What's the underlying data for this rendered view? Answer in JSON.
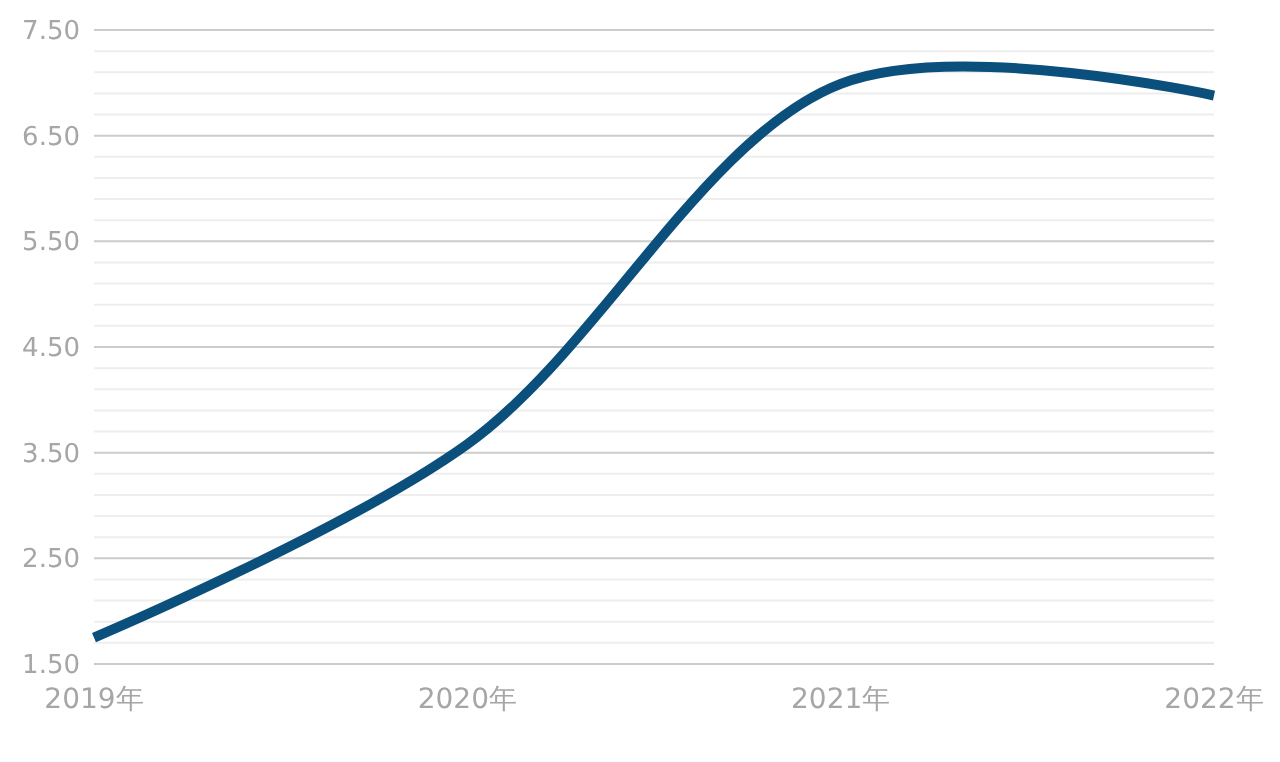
{
  "chart_data": {
    "type": "line",
    "categories": [
      "2019年",
      "2020年",
      "2021年",
      "2022年"
    ],
    "series": [
      {
        "color": "#0b4f7c",
        "values": [
          1.75,
          3.58,
          6.99,
          6.88
        ]
      }
    ],
    "ylim": [
      1.5,
      7.5
    ],
    "yticks": [
      {
        "value": 1.5,
        "label": "1.50"
      },
      {
        "value": 1.7,
        "label": null
      },
      {
        "value": 1.9,
        "label": null
      },
      {
        "value": 2.1,
        "label": null
      },
      {
        "value": 2.3,
        "label": null
      },
      {
        "value": 2.5,
        "label": "2.50"
      },
      {
        "value": 2.7,
        "label": null
      },
      {
        "value": 2.9,
        "label": null
      },
      {
        "value": 3.1,
        "label": null
      },
      {
        "value": 3.3,
        "label": null
      },
      {
        "value": 3.5,
        "label": "3.50"
      },
      {
        "value": 3.7,
        "label": null
      },
      {
        "value": 3.9,
        "label": null
      },
      {
        "value": 4.1,
        "label": null
      },
      {
        "value": 4.3,
        "label": null
      },
      {
        "value": 4.5,
        "label": "4.50"
      },
      {
        "value": 4.7,
        "label": null
      },
      {
        "value": 4.9,
        "label": null
      },
      {
        "value": 5.1,
        "label": null
      },
      {
        "value": 5.3,
        "label": null
      },
      {
        "value": 5.5,
        "label": "5.50"
      },
      {
        "value": 5.7,
        "label": null
      },
      {
        "value": 5.9,
        "label": null
      },
      {
        "value": 6.1,
        "label": null
      },
      {
        "value": 6.3,
        "label": null
      },
      {
        "value": 6.5,
        "label": "6.50"
      },
      {
        "value": 6.7,
        "label": null
      },
      {
        "value": 6.9,
        "label": null
      },
      {
        "value": 7.1,
        "label": null
      },
      {
        "value": 7.3,
        "label": null
      },
      {
        "value": 7.5,
        "label": "7.50"
      }
    ],
    "grid": "y",
    "marker": "none",
    "line_style": "solid"
  }
}
